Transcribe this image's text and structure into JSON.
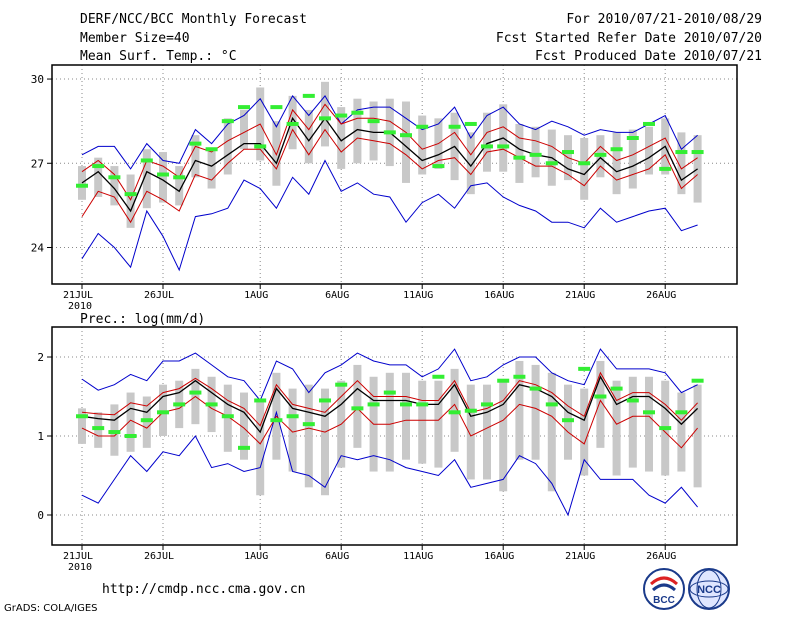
{
  "header": {
    "title": "DERF/NCC/BCC Monthly Forecast",
    "member_size": "Member Size=40",
    "var1": "Mean Surf. Temp.: °C",
    "period": "For 2010/07/21-2010/08/29",
    "started": "Fcst Started Refer Date 2010/07/20",
    "produced": "Fcst Produced Date 2010/07/21"
  },
  "lower_label": "Prec.: log(mm/d)",
  "footer": {
    "url": "http://cmdp.ncc.cma.gov.cn",
    "grads": "GrADS: COLA/IGES",
    "logo1": "BCC",
    "logo2": "NCC"
  },
  "colors": {
    "mean": "#000000",
    "spread": "#cc0000",
    "extreme": "#0000cc",
    "box": "#c8c8c8",
    "obs": "#33ee33"
  },
  "chart_data": [
    {
      "type": "line",
      "title": "Mean Surf. Temp.: °C",
      "x_tick_labels": [
        "21JUL",
        "26JUL",
        "1AUG",
        "6AUG",
        "11AUG",
        "16AUG",
        "21AUG",
        "26AUG"
      ],
      "x_tick_index": [
        0,
        5,
        11,
        16,
        21,
        26,
        31,
        36
      ],
      "year_label": "2010",
      "ylim": [
        22.7,
        30.5
      ],
      "yticks": [
        24,
        27,
        30
      ],
      "mean": [
        26.3,
        26.7,
        26.1,
        25.3,
        26.7,
        26.4,
        26.0,
        27.1,
        26.9,
        27.3,
        27.7,
        27.7,
        27.0,
        28.6,
        27.8,
        28.6,
        27.8,
        28.2,
        28.1,
        28.1,
        27.6,
        27.1,
        27.3,
        27.6,
        26.9,
        27.7,
        27.9,
        27.5,
        27.3,
        27.2,
        26.8,
        26.6,
        27.2,
        26.7,
        26.9,
        27.2,
        27.6,
        26.4,
        26.8
      ],
      "upper": [
        26.7,
        27.1,
        26.6,
        25.7,
        27.1,
        26.9,
        26.5,
        27.6,
        27.4,
        27.8,
        28.1,
        28.4,
        27.3,
        28.9,
        28.2,
        29.1,
        28.4,
        28.6,
        28.6,
        28.5,
        28.1,
        27.5,
        27.7,
        28.1,
        27.3,
        28.1,
        28.3,
        27.9,
        27.8,
        27.6,
        27.2,
        27.0,
        27.6,
        27.1,
        27.3,
        27.6,
        27.9,
        26.8,
        27.2
      ],
      "lower": [
        25.1,
        26.0,
        25.8,
        24.9,
        26.0,
        25.7,
        25.3,
        26.6,
        26.4,
        27.0,
        27.5,
        27.5,
        26.8,
        28.2,
        27.3,
        28.2,
        27.4,
        27.9,
        27.8,
        27.7,
        27.3,
        26.8,
        27.1,
        27.2,
        26.6,
        27.4,
        27.5,
        27.2,
        26.9,
        26.9,
        26.6,
        26.2,
        26.9,
        26.4,
        26.6,
        26.8,
        27.3,
        26.1,
        26.6
      ],
      "max": [
        27.3,
        27.6,
        27.6,
        26.8,
        27.7,
        27.1,
        27.0,
        28.2,
        27.7,
        28.4,
        28.7,
        29.3,
        28.3,
        29.4,
        28.7,
        29.4,
        28.4,
        28.9,
        29.0,
        29.0,
        28.6,
        28.2,
        28.4,
        29.0,
        27.9,
        28.7,
        29.0,
        28.4,
        28.2,
        28.5,
        28.3,
        28.0,
        28.2,
        28.1,
        28.1,
        28.4,
        28.7,
        27.5,
        28.0
      ],
      "min": [
        23.6,
        24.5,
        24.0,
        23.3,
        25.3,
        24.4,
        23.2,
        25.1,
        25.2,
        25.4,
        26.4,
        26.1,
        25.4,
        26.5,
        25.9,
        27.1,
        26.0,
        26.3,
        25.9,
        25.8,
        24.9,
        25.6,
        25.9,
        25.4,
        26.2,
        26.3,
        25.8,
        25.5,
        25.3,
        24.9,
        24.9,
        24.7,
        25.4,
        24.9,
        25.1,
        25.3,
        25.4,
        24.6,
        24.8
      ],
      "box_hi": [
        26.9,
        27.2,
        26.9,
        26.6,
        27.5,
        27.4,
        26.9,
        28.0,
        27.5,
        28.6,
        28.9,
        29.7,
        28.5,
        29.4,
        28.9,
        29.9,
        29.0,
        29.3,
        29.2,
        29.3,
        29.2,
        28.7,
        28.6,
        28.8,
        28.1,
        28.8,
        29.1,
        28.4,
        28.3,
        28.2,
        28.0,
        27.9,
        28.0,
        28.1,
        28.2,
        28.3,
        28.6,
        28.1,
        28.0
      ],
      "box_lo": [
        25.7,
        25.8,
        25.5,
        24.7,
        25.4,
        25.6,
        25.5,
        26.5,
        26.1,
        26.6,
        27.5,
        27.1,
        26.2,
        27.5,
        27.0,
        27.6,
        26.8,
        27.0,
        27.1,
        26.9,
        26.3,
        26.6,
        26.8,
        26.4,
        25.9,
        26.7,
        26.7,
        26.3,
        26.5,
        26.2,
        26.4,
        25.7,
        26.5,
        25.9,
        26.1,
        26.6,
        26.6,
        25.9,
        25.6
      ],
      "obs": [
        26.2,
        26.9,
        26.5,
        25.9,
        27.1,
        26.6,
        26.5,
        27.7,
        27.5,
        28.5,
        29.0,
        27.6,
        29.0,
        28.4,
        29.4,
        28.6,
        28.7,
        28.8,
        28.5,
        28.1,
        28.0,
        28.3,
        26.9,
        28.3,
        28.4,
        27.6,
        27.6,
        27.2,
        27.3,
        27.0,
        27.4,
        27.0,
        27.3,
        27.5,
        27.9,
        28.4,
        26.8,
        27.4,
        27.4
      ]
    },
    {
      "type": "line",
      "title": "Prec.: log(mm/d)",
      "x_tick_labels": [
        "21JUL",
        "26JUL",
        "1AUG",
        "6AUG",
        "11AUG",
        "16AUG",
        "21AUG",
        "26AUG"
      ],
      "x_tick_index": [
        0,
        5,
        11,
        16,
        21,
        26,
        31,
        36
      ],
      "year_label": "2010",
      "ylim": [
        -0.38,
        2.38
      ],
      "yticks": [
        0,
        1,
        2
      ],
      "mean": [
        1.25,
        1.22,
        1.2,
        1.35,
        1.3,
        1.5,
        1.55,
        1.7,
        1.55,
        1.4,
        1.3,
        1.05,
        1.6,
        1.35,
        1.3,
        1.25,
        1.4,
        1.6,
        1.45,
        1.45,
        1.45,
        1.4,
        1.4,
        1.65,
        1.25,
        1.3,
        1.4,
        1.65,
        1.6,
        1.5,
        1.3,
        1.2,
        1.75,
        1.4,
        1.5,
        1.5,
        1.35,
        1.15,
        1.35
      ],
      "upper": [
        1.3,
        1.28,
        1.27,
        1.42,
        1.38,
        1.55,
        1.6,
        1.73,
        1.6,
        1.45,
        1.35,
        1.13,
        1.65,
        1.4,
        1.35,
        1.3,
        1.5,
        1.7,
        1.5,
        1.5,
        1.5,
        1.45,
        1.45,
        1.7,
        1.3,
        1.35,
        1.45,
        1.7,
        1.65,
        1.55,
        1.38,
        1.25,
        1.8,
        1.45,
        1.55,
        1.55,
        1.4,
        1.2,
        1.42
      ],
      "lower": [
        1.1,
        1.0,
        1.0,
        1.2,
        1.1,
        1.3,
        1.35,
        1.5,
        1.35,
        1.25,
        1.1,
        0.9,
        1.25,
        1.05,
        1.1,
        1.05,
        1.15,
        1.35,
        1.15,
        1.15,
        1.2,
        1.2,
        1.2,
        1.4,
        1.0,
        1.1,
        1.2,
        1.4,
        1.35,
        1.25,
        1.05,
        0.9,
        1.45,
        1.15,
        1.25,
        1.25,
        1.05,
        0.85,
        1.1
      ],
      "max": [
        1.72,
        1.58,
        1.65,
        1.78,
        1.7,
        1.95,
        1.95,
        2.05,
        1.9,
        1.75,
        1.7,
        1.45,
        1.95,
        1.85,
        1.55,
        1.8,
        1.9,
        2.05,
        1.95,
        1.9,
        1.9,
        1.75,
        1.85,
        2.1,
        1.7,
        1.75,
        1.9,
        2.0,
        2.0,
        1.8,
        1.7,
        1.65,
        2.1,
        1.85,
        1.85,
        1.85,
        1.8,
        1.55,
        1.65
      ],
      "min": [
        0.25,
        0.15,
        0.45,
        0.75,
        0.55,
        0.8,
        0.75,
        1.0,
        0.6,
        0.65,
        0.55,
        0.6,
        1.3,
        0.55,
        0.5,
        0.35,
        0.75,
        0.7,
        0.75,
        0.7,
        0.6,
        0.55,
        0.5,
        0.7,
        0.35,
        0.4,
        0.45,
        0.75,
        0.65,
        0.4,
        0.0,
        0.7,
        0.45,
        0.45,
        0.45,
        0.25,
        0.15,
        0.35,
        0.1
      ],
      "box_hi": [
        1.35,
        1.3,
        1.4,
        1.55,
        1.5,
        1.65,
        1.7,
        1.85,
        1.75,
        1.65,
        1.55,
        1.45,
        1.8,
        1.6,
        1.65,
        1.6,
        1.7,
        1.9,
        1.75,
        1.8,
        1.8,
        1.7,
        1.7,
        1.85,
        1.65,
        1.65,
        1.7,
        1.95,
        1.9,
        1.8,
        1.65,
        1.6,
        1.95,
        1.7,
        1.75,
        1.75,
        1.7,
        1.55,
        1.65
      ],
      "box_lo": [
        0.9,
        0.85,
        0.75,
        0.8,
        0.85,
        1.0,
        1.1,
        1.15,
        1.05,
        0.8,
        0.7,
        0.25,
        0.7,
        0.55,
        0.35,
        0.25,
        0.6,
        0.85,
        0.55,
        0.55,
        0.7,
        0.65,
        0.6,
        0.8,
        0.45,
        0.45,
        0.3,
        0.7,
        0.7,
        0.3,
        0.7,
        0.5,
        0.85,
        0.5,
        0.6,
        0.55,
        0.5,
        0.55,
        0.35
      ],
      "obs": [
        1.25,
        1.1,
        1.05,
        1.0,
        1.2,
        1.3,
        1.4,
        1.55,
        1.4,
        1.25,
        0.85,
        1.45,
        1.2,
        1.25,
        1.15,
        1.45,
        1.65,
        1.35,
        1.4,
        1.55,
        1.4,
        1.4,
        1.75,
        1.3,
        1.32,
        1.4,
        1.7,
        1.75,
        1.6,
        1.4,
        1.2,
        1.85,
        1.5,
        1.6,
        1.45,
        1.3,
        1.1,
        1.3,
        1.7
      ]
    }
  ]
}
